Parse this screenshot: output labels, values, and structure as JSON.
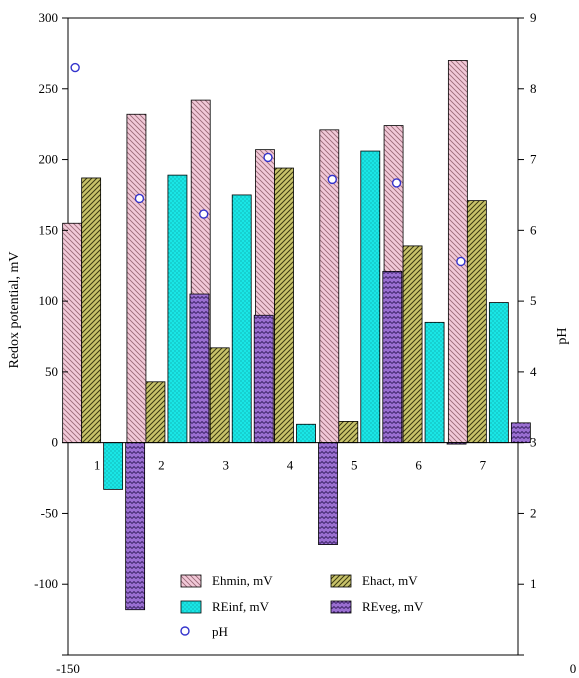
{
  "chart_data": {
    "type": "bar",
    "title": "",
    "categories": [
      "1",
      "2",
      "3",
      "4",
      "5",
      "6",
      "7"
    ],
    "ylabel_left": "Redox potential, mV",
    "ylabel_right": "pH",
    "ylim_left": [
      -150,
      300
    ],
    "yticks_left": [
      300,
      250,
      200,
      150,
      100,
      50,
      0,
      -50,
      -100,
      -150
    ],
    "ylim_right": [
      0,
      9
    ],
    "yticks_right": [
      9,
      8,
      7,
      6,
      5,
      4,
      3,
      2,
      1,
      0
    ],
    "series": [
      {
        "name": "Ehmin, mV",
        "key": "ehmin",
        "color": "#f2c9d8",
        "pattern": "diag-down",
        "values": [
          155,
          232,
          242,
          207,
          221,
          224,
          270
        ]
      },
      {
        "name": "Ehact, mV",
        "key": "ehact",
        "color": "#c8c36a",
        "pattern": "diag-up",
        "values": [
          187,
          43,
          67,
          194,
          15,
          139,
          171
        ]
      },
      {
        "name": "REinf, mV",
        "key": "reinf",
        "color": "#19e6e6",
        "pattern": "dots",
        "values": [
          -33,
          189,
          175,
          13,
          206,
          85,
          99
        ]
      },
      {
        "name": "REveg, mV",
        "key": "reveg",
        "color": "#9a6fd1",
        "pattern": "zigzag",
        "values": [
          -118,
          105,
          90,
          -72,
          121,
          -1,
          14
        ]
      }
    ],
    "ph_series": {
      "name": "pH",
      "color": "#3333cc",
      "values": [
        8.3,
        6.45,
        6.23,
        7.03,
        6.72,
        6.67,
        5.56
      ]
    },
    "legend_position": "bottom-center",
    "grid": false
  }
}
